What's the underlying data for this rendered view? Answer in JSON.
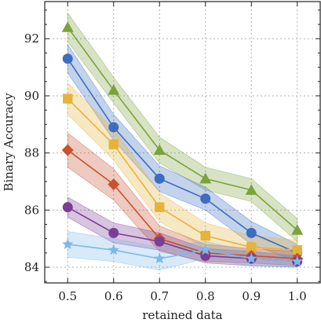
{
  "chart_data": {
    "type": "line",
    "xlabel": "retained data",
    "ylabel": "Binary Accuracy",
    "x": [
      0.5,
      0.6,
      0.7,
      0.8,
      0.9,
      1.0
    ],
    "x_tick_labels": [
      "0.5",
      "0.6",
      "0.7",
      "0.8",
      "0.9",
      "1.0"
    ],
    "y_ticks": [
      84,
      86,
      88,
      90,
      92
    ],
    "xlim": [
      0.45,
      1.05
    ],
    "ylim": [
      83.45,
      93.3
    ],
    "grid": true,
    "legend": "none",
    "series": [
      {
        "color": "#7aa33c",
        "marker": "triangle",
        "values": [
          92.4,
          90.2,
          88.1,
          87.1,
          86.7,
          85.3
        ],
        "band": [
          0.5,
          0.45,
          0.45,
          0.4,
          0.4,
          0.4
        ]
      },
      {
        "color": "#3d6dbf",
        "marker": "circle",
        "values": [
          91.3,
          88.9,
          87.1,
          86.4,
          85.2,
          84.5
        ],
        "band": [
          0.5,
          0.45,
          0.45,
          0.4,
          0.4,
          0.3
        ]
      },
      {
        "color": "#e6b23a",
        "marker": "square",
        "values": [
          89.9,
          88.3,
          86.1,
          85.1,
          84.7,
          84.6
        ],
        "band": [
          0.55,
          0.55,
          0.5,
          0.45,
          0.4,
          0.35
        ]
      },
      {
        "color": "#c8512e",
        "marker": "diamond",
        "values": [
          88.1,
          86.9,
          85.0,
          84.5,
          84.4,
          84.3
        ],
        "band": [
          0.6,
          0.55,
          0.45,
          0.3,
          0.25,
          0.25
        ]
      },
      {
        "color": "#7a3e96",
        "marker": "circle",
        "values": [
          86.1,
          85.2,
          84.9,
          84.4,
          84.3,
          84.2
        ],
        "band": [
          0.35,
          0.35,
          0.3,
          0.25,
          0.25,
          0.2
        ]
      },
      {
        "color": "#7db8e8",
        "marker": "star",
        "values": [
          84.8,
          84.6,
          84.3,
          84.6,
          84.3,
          84.2
        ],
        "band": [
          0.45,
          0.4,
          0.4,
          0.3,
          0.25,
          0.2
        ]
      }
    ]
  }
}
